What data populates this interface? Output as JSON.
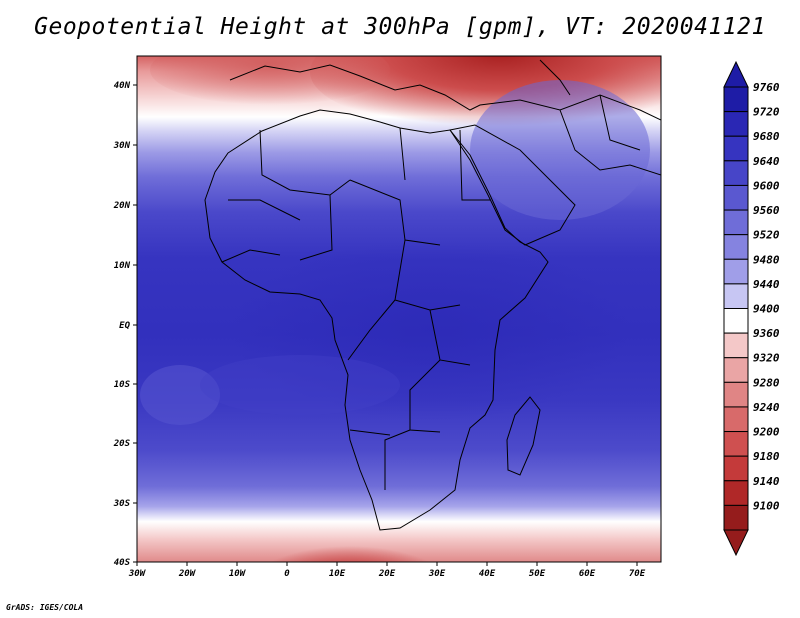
{
  "title": "Geopotential Height at 300hPa [gpm], VT: 2020041121",
  "credit": "GrADS: IGES/COLA",
  "lat_labels": [
    "40N",
    "30N",
    "20N",
    "10N",
    "EQ",
    "10S",
    "20S",
    "30S",
    "40S"
  ],
  "lon_labels": [
    "30W",
    "20W",
    "10W",
    "0",
    "10E",
    "20E",
    "30E",
    "40E",
    "50E",
    "60E",
    "70E"
  ],
  "colorbar": {
    "labels": [
      "9760",
      "9720",
      "9680",
      "9640",
      "9600",
      "9560",
      "9520",
      "9480",
      "9440",
      "9400",
      "9360",
      "9320",
      "9280",
      "9240",
      "9200",
      "9180",
      "9140",
      "9100"
    ],
    "colors": [
      "#1e1ca6",
      "#2a27b4",
      "#3634c0",
      "#4745c8",
      "#5a58d0",
      "#6f6dd8",
      "#8583e0",
      "#a09ee8",
      "#c7c6f3",
      "#ffffff",
      "#f4c8c8",
      "#eaa5a5",
      "#e08585",
      "#d86a6a",
      "#cf5050",
      "#c43a3a",
      "#b02828",
      "#951c1c"
    ]
  }
}
